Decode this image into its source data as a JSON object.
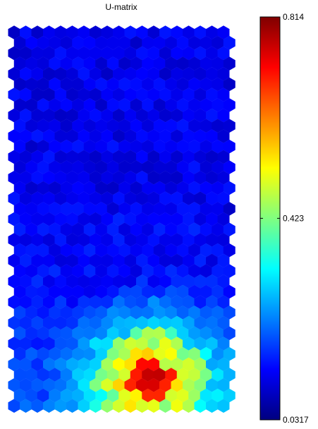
{
  "chart_data": {
    "type": "heatmap",
    "title": "U-matrix",
    "lattice": "hexagonal",
    "grid_cols": 19,
    "grid_rows": 37,
    "colormap": "jet",
    "colorbar": {
      "min": 0.0317,
      "max": 0.814,
      "tick_labels": [
        "0.814",
        "0.423",
        "0.0317"
      ],
      "tick_values": [
        0.814,
        0.423,
        0.0317
      ]
    },
    "regions": [
      {
        "description": "upper and middle map",
        "typical_value": 0.13
      },
      {
        "description": "bottom-center peak (dark red cells)",
        "typical_value": 0.8
      },
      {
        "description": "bottom-center ring (yellow/orange cells)",
        "typical_value": 0.6
      }
    ]
  }
}
